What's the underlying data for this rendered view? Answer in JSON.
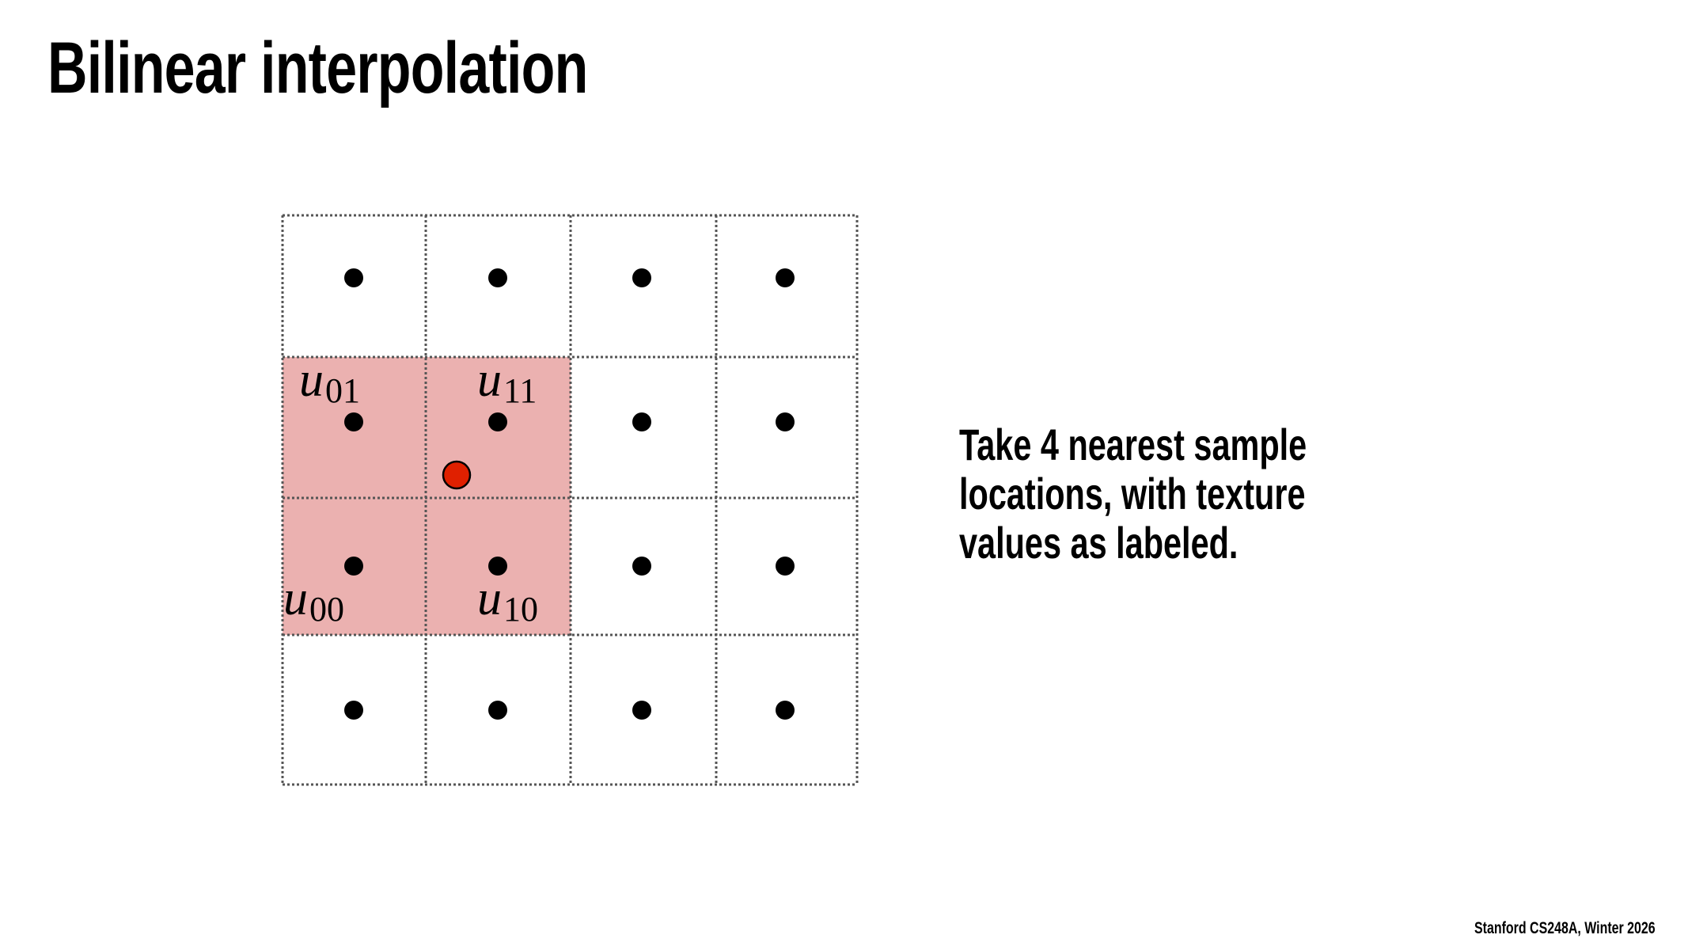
{
  "slide": {
    "title": "Bilinear interpolation",
    "body_lines": [
      "Take 4 nearest sample",
      "locations, with texture",
      "values as labeled."
    ],
    "footer": "Stanford CS248A, Winter 2026"
  },
  "diagram": {
    "grid": {
      "rows": 4,
      "cols": 4
    },
    "highlight_color": "#ebb1b0",
    "highlighted_cells": [
      [
        1,
        0
      ],
      [
        1,
        1
      ],
      [
        2,
        0
      ],
      [
        2,
        1
      ]
    ],
    "sample_dot_color": "#000000",
    "query_point_color": "#e02000",
    "labels": [
      {
        "base": "u",
        "sub": "01"
      },
      {
        "base": "u",
        "sub": "11"
      },
      {
        "base": "u",
        "sub": "00"
      },
      {
        "base": "u",
        "sub": "10"
      }
    ]
  }
}
